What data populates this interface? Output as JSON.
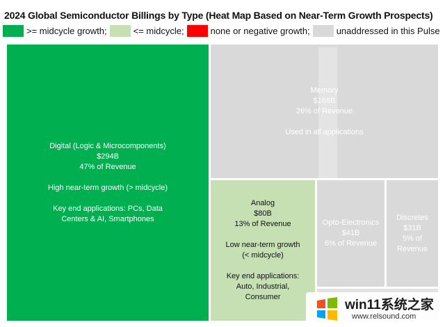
{
  "chart_data": {
    "type": "treemap",
    "title": "2024 Global Semiconductor Billings by Type (Heat Map Based on Near-Term Growth Prospects)",
    "legend": [
      {
        "label": ">= midcycle growth;",
        "color": "#00b050"
      },
      {
        "label": "<= midcycle;",
        "color": "#c6e0b4"
      },
      {
        "label": "none or negative growth;",
        "color": "#ff0000"
      },
      {
        "label": "unaddressed in this Pulse",
        "color": "#d9d9d9"
      }
    ],
    "tiles": [
      {
        "name": "Digital (Logic & Microcomponents)",
        "value_label": "$294B",
        "value": 294,
        "share_label": "47% of Revenue",
        "growth_note": "High near-term growth (> midcycle)",
        "applications": "Key end applications: PCs, Data Centers & AI, Smartphones",
        "color": "#00b050",
        "text_color": "#ffffff"
      },
      {
        "name": "Memory",
        "value_label": "$166B",
        "value": 166,
        "share_label": "26% of Revenue",
        "applications": "Used in all applications",
        "color": "#d9d9d9",
        "text_color": "#ffffff"
      },
      {
        "name": "Analog",
        "value_label": "$80B",
        "value": 80,
        "share_label": "13% of Revenue",
        "growth_note": "Low near-term growth (< midcycle)",
        "applications": "Key end applications: Auto, Industrial, Consumer",
        "color": "#c6e0b4",
        "text_color": "#111111"
      },
      {
        "name": "Opto-Electronics",
        "value_label": "$41B",
        "value": 41,
        "share_label": "6% of Revenue",
        "color": "#d9d9d9",
        "text_color": "#ffffff"
      },
      {
        "name": "Discretes",
        "value_label": "$31B",
        "value": 31,
        "share_label": "5% of Revenue",
        "color": "#d9d9d9",
        "text_color": "#ffffff"
      }
    ]
  },
  "watermark": {
    "main": "win11系统之家",
    "sub": "www.relsound.com",
    "logo_colors": [
      "#f25022",
      "#7fba00",
      "#00a4ef",
      "#ffb900"
    ]
  }
}
